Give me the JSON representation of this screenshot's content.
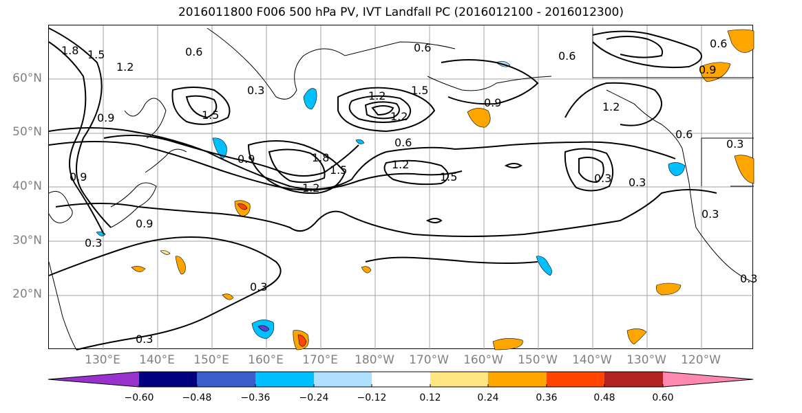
{
  "title": "2016011800 F006 500 hPa PV, IVT Landfall PC (2016012100 - 2016012300)",
  "lat_labels": [
    "60°N",
    "50°N",
    "40°N",
    "30°N",
    "20°N"
  ],
  "lon_labels": [
    "130°E",
    "140°E",
    "150°E",
    "160°E",
    "170°E",
    "180°W",
    "170°W",
    "160°W",
    "150°W",
    "140°W",
    "130°W",
    "120°W"
  ],
  "contour_labels": [
    "1.8",
    "1.5",
    "1.2",
    "0.6",
    "0.9",
    "0.6",
    "0.3",
    "1.5",
    "0.9",
    "1.5",
    "1.2",
    "1.2",
    "0.9",
    "0.6",
    "1.2",
    "1.5",
    "0.9",
    "1.8",
    "1.2",
    "1.5",
    "0.6",
    "0.3",
    "0.9",
    "0.3",
    "0.9",
    "0.3",
    "1.2",
    "0.3",
    "0.3",
    "0.3",
    "0.3",
    "0.6",
    "0.3",
    "0.6"
  ],
  "colorbar": {
    "ticks": [
      "−0.60",
      "−0.48",
      "−0.36",
      "−0.24",
      "−0.12",
      "0.12",
      "0.24",
      "0.36",
      "0.48",
      "0.60"
    ],
    "colors": [
      "#9932cc",
      "#000080",
      "#3a5fcd",
      "#00bfff",
      "#b0e0ff",
      "#ffffff",
      "#ffe680",
      "#ffa500",
      "#ff4500",
      "#b22222",
      "#ff88b0"
    ]
  }
}
